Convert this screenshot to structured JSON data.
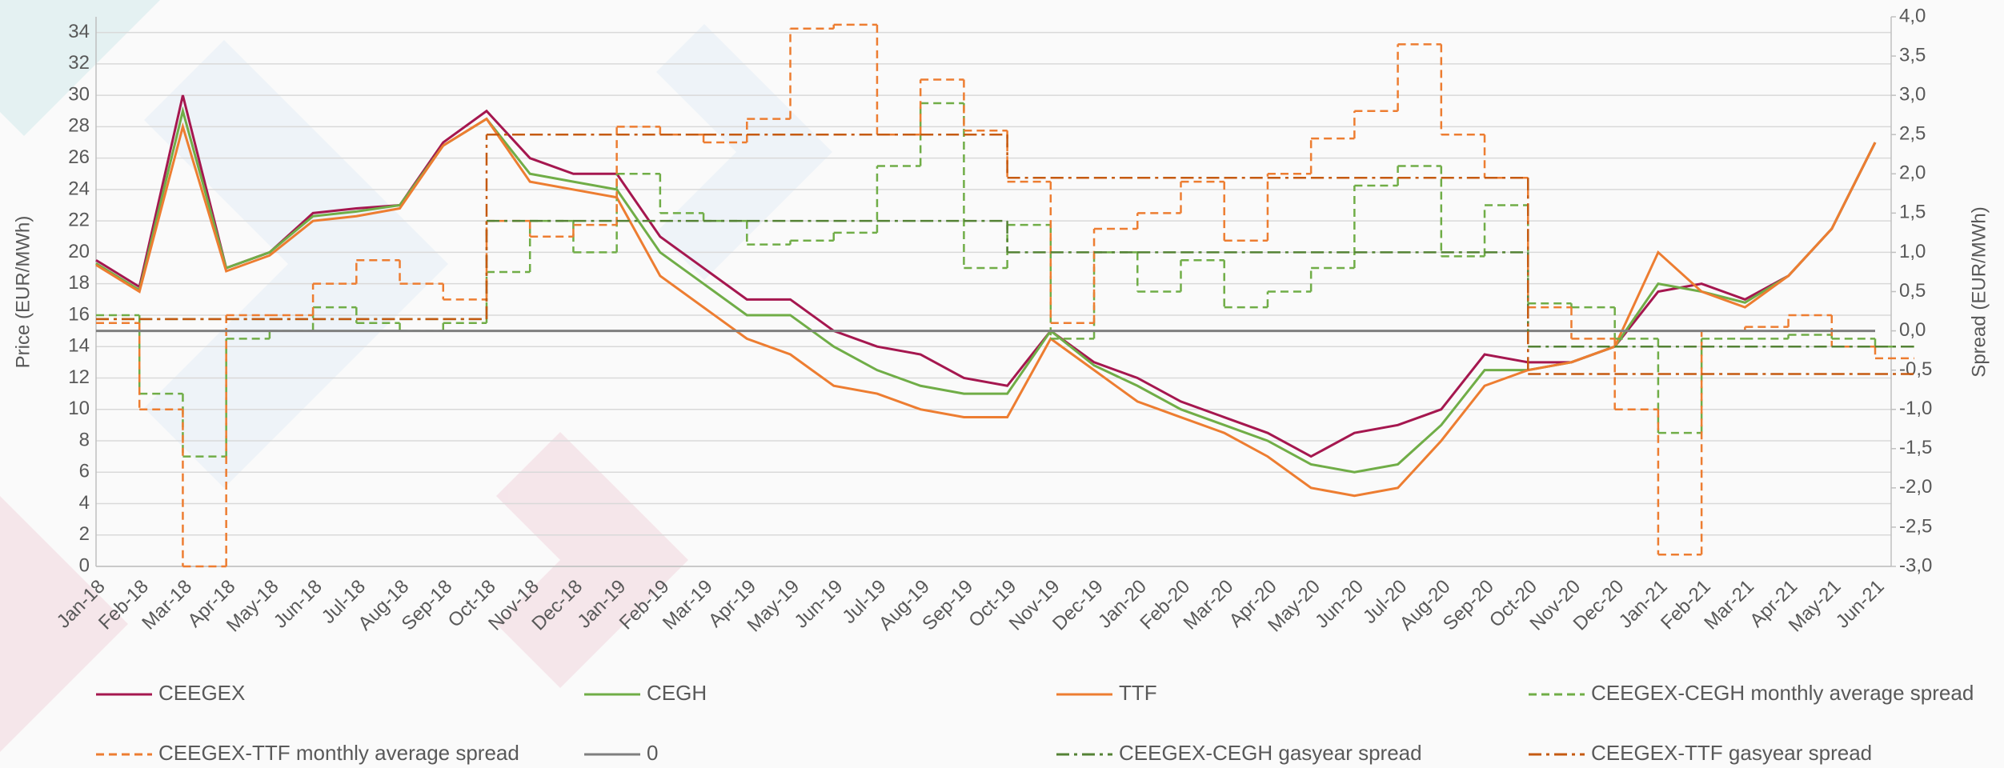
{
  "chart_data": {
    "type": "line",
    "y_label": "Price (EUR/MWh)",
    "y2_label": "Spread (EUR/MWh)",
    "categories": [
      "Jan-18",
      "Feb-18",
      "Mar-18",
      "Apr-18",
      "May-18",
      "Jun-18",
      "Jul-18",
      "Aug-18",
      "Sep-18",
      "Oct-18",
      "Nov-18",
      "Dec-18",
      "Jan-19",
      "Feb-19",
      "Mar-19",
      "Apr-19",
      "May-19",
      "Jun-19",
      "Jul-19",
      "Aug-19",
      "Sep-19",
      "Oct-19",
      "Nov-19",
      "Dec-19",
      "Jan-20",
      "Feb-20",
      "Mar-20",
      "Apr-20",
      "May-20",
      "Jun-20",
      "Jul-20",
      "Aug-20",
      "Sep-20",
      "Oct-20",
      "Nov-20",
      "Dec-20",
      "Jan-21",
      "Feb-21",
      "Mar-21",
      "Apr-21",
      "May-21",
      "Jun-21"
    ],
    "ylim": [
      0,
      35
    ],
    "yticks": [
      0,
      2,
      4,
      6,
      8,
      10,
      12,
      14,
      16,
      18,
      20,
      22,
      24,
      26,
      28,
      30,
      32,
      34
    ],
    "y2lim": [
      -3,
      4
    ],
    "y2ticks": [
      {
        "value": 4,
        "label": "4,0"
      },
      {
        "value": 3.5,
        "label": "3,5"
      },
      {
        "value": 3,
        "label": "3,0"
      },
      {
        "value": 2.5,
        "label": "2,5"
      },
      {
        "value": 2,
        "label": "2,0"
      },
      {
        "value": 1.5,
        "label": "1,5"
      },
      {
        "value": 1,
        "label": "1,0"
      },
      {
        "value": 0.5,
        "label": "0,5"
      },
      {
        "value": 0,
        "label": "0,0"
      },
      {
        "value": -0.5,
        "label": "-0,5"
      },
      {
        "value": -1,
        "label": "-1,0"
      },
      {
        "value": -1.5,
        "label": "-1,5"
      },
      {
        "value": -2,
        "label": "-2,0"
      },
      {
        "value": -2.5,
        "label": "-2,5"
      },
      {
        "value": -3,
        "label": "-3,0"
      }
    ],
    "grid": true,
    "series": [
      {
        "name": "CEEGEX",
        "color": "#a5174f",
        "style": "solid",
        "values": [
          19.5,
          17.8,
          30,
          19,
          20,
          22.5,
          22.8,
          23,
          27,
          29,
          26,
          25,
          25,
          21,
          19,
          17,
          17,
          15,
          14,
          13.5,
          12,
          11.5,
          15,
          13,
          12,
          10.5,
          9.5,
          8.5,
          7,
          8.5,
          9,
          10,
          13.5,
          13,
          13,
          14,
          17.5,
          18,
          17,
          18.5,
          21.5,
          27
        ]
      },
      {
        "name": "CEGH",
        "color": "#70ad47",
        "style": "solid",
        "values": [
          19.3,
          17.6,
          29,
          19,
          20,
          22.3,
          22.6,
          23,
          26.8,
          28.5,
          25,
          24.5,
          24,
          20,
          18,
          16,
          16,
          14,
          12.5,
          11.5,
          11,
          11,
          15,
          12.8,
          11.5,
          10,
          9,
          8,
          6.5,
          6,
          6.5,
          9,
          12.5,
          12.5,
          13,
          14,
          18,
          17.5,
          16.8,
          18.5,
          21.5,
          27
        ]
      },
      {
        "name": "TTF",
        "color": "#ed7d31",
        "style": "solid",
        "values": [
          19.2,
          17.5,
          28,
          18.8,
          19.8,
          22,
          22.3,
          22.8,
          26.8,
          28.5,
          24.5,
          24,
          23.5,
          18.5,
          16.5,
          14.5,
          13.5,
          11.5,
          11,
          10,
          9.5,
          9.5,
          14.5,
          12.5,
          10.5,
          9.5,
          8.5,
          7,
          5,
          4.5,
          5,
          8,
          11.5,
          12.5,
          13,
          14,
          20,
          17.5,
          16.5,
          18.5,
          21.5,
          27
        ]
      },
      {
        "name": "CEEGEX-CEGH monthly average spread",
        "color": "#70ad47",
        "style": "dashed",
        "step": true,
        "axis": "y2",
        "values": [
          0.2,
          -0.8,
          -1.6,
          -0.1,
          0,
          0.3,
          0.1,
          0,
          0.1,
          0.75,
          1.4,
          1,
          2,
          1.5,
          1.4,
          1.1,
          1.15,
          1.25,
          2.1,
          2.9,
          0.8,
          1.35,
          -0.1,
          1,
          0.5,
          0.9,
          0.3,
          0.5,
          0.8,
          1.85,
          2.1,
          0.95,
          1.6,
          0.35,
          0.3,
          -0.1,
          -1.3,
          -0.1,
          -0.1,
          -0.05,
          -0.1,
          -0.2
        ]
      },
      {
        "name": "CEEGEX-TTF monthly average spread",
        "color": "#ed7d31",
        "style": "dashed",
        "step": true,
        "axis": "y2",
        "values": [
          0.1,
          -1,
          -3,
          0.2,
          0.2,
          0.6,
          0.9,
          0.6,
          0.4,
          1.4,
          1.2,
          1.35,
          2.6,
          2.5,
          2.4,
          2.7,
          3.85,
          3.9,
          2.5,
          3.2,
          2.55,
          1.9,
          0.1,
          1.3,
          1.5,
          1.9,
          1.15,
          2,
          2.45,
          2.8,
          3.65,
          2.5,
          1.95,
          0.3,
          -0.1,
          -1,
          -2.85,
          0,
          0.05,
          0.2,
          -0.2,
          -0.35
        ]
      },
      {
        "name": "0",
        "color": "#7f7f7f",
        "style": "solid",
        "axis": "y2",
        "values": [
          0,
          0,
          0,
          0,
          0,
          0,
          0,
          0,
          0,
          0,
          0,
          0,
          0,
          0,
          0,
          0,
          0,
          0,
          0,
          0,
          0,
          0,
          0,
          0,
          0,
          0,
          0,
          0,
          0,
          0,
          0,
          0,
          0,
          0,
          0,
          0,
          0,
          0,
          0,
          0,
          0,
          0
        ]
      },
      {
        "name": "CEEGEX-CEGH gasyear spread",
        "color": "#548235",
        "style": "dashdot",
        "step": true,
        "axis": "y2",
        "values": [
          0.15,
          0.15,
          0.15,
          0.15,
          0.15,
          0.15,
          0.15,
          0.15,
          0.15,
          1.4,
          1.4,
          1.4,
          1.4,
          1.4,
          1.4,
          1.4,
          1.4,
          1.4,
          1.4,
          1.4,
          1.4,
          1,
          1,
          1,
          1,
          1,
          1,
          1,
          1,
          1,
          1,
          1,
          1,
          -0.2,
          -0.2,
          -0.2,
          -0.2,
          -0.2,
          -0.2,
          -0.2,
          -0.2,
          -0.2
        ]
      },
      {
        "name": "CEEGEX-TTF gasyear spread",
        "color": "#c55a11",
        "style": "dashdot",
        "step": true,
        "axis": "y2",
        "values": [
          0.15,
          0.15,
          0.15,
          0.15,
          0.15,
          0.15,
          0.15,
          0.15,
          0.15,
          2.5,
          2.5,
          2.5,
          2.5,
          2.5,
          2.5,
          2.5,
          2.5,
          2.5,
          2.5,
          2.5,
          2.5,
          1.95,
          1.95,
          1.95,
          1.95,
          1.95,
          1.95,
          1.95,
          1.95,
          1.95,
          1.95,
          1.95,
          1.95,
          -0.55,
          -0.55,
          -0.55,
          -0.55,
          -0.55,
          -0.55,
          -0.55,
          -0.55,
          -0.55
        ]
      }
    ]
  }
}
